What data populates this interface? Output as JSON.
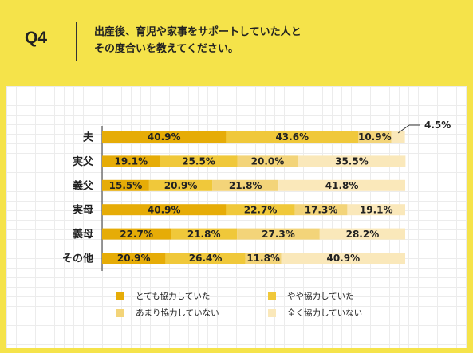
{
  "header": {
    "q_label": "Q4",
    "question_line1": "出産後、育児や家事をサポートしていた人と",
    "question_line2": "その度合いを教えてください。"
  },
  "colors": {
    "background": "#f5e34a",
    "series": [
      "#e6ac07",
      "#f0c83a",
      "#f3d479",
      "#fae8ba"
    ]
  },
  "chart_data": {
    "type": "bar",
    "orientation": "horizontal",
    "stacked": true,
    "categories": [
      "夫",
      "実父",
      "義父",
      "実母",
      "義母",
      "その他"
    ],
    "series": [
      {
        "name": "とても協力していた",
        "values": [
          40.9,
          19.1,
          15.5,
          40.9,
          22.7,
          20.9
        ]
      },
      {
        "name": "やや協力していた",
        "values": [
          43.6,
          25.5,
          20.9,
          22.7,
          21.8,
          26.4
        ]
      },
      {
        "name": "あまり協力していない",
        "values": [
          10.9,
          20.0,
          21.8,
          17.3,
          27.3,
          11.8
        ]
      },
      {
        "name": "全く協力していない",
        "values": [
          4.5,
          35.5,
          41.8,
          19.1,
          28.2,
          40.9
        ]
      }
    ],
    "labels": [
      [
        "40.9%",
        "43.6%",
        "10.9%",
        "4.5%"
      ],
      [
        "19.1%",
        "25.5%",
        "20.0%",
        "35.5%"
      ],
      [
        "15.5%",
        "20.9%",
        "21.8%",
        "41.8%"
      ],
      [
        "40.9%",
        "22.7%",
        "17.3%",
        "19.1%"
      ],
      [
        "22.7%",
        "21.8%",
        "27.3%",
        "28.2%"
      ],
      [
        "20.9%",
        "26.4%",
        "11.8%",
        "40.9%"
      ]
    ],
    "xlim": [
      0,
      100
    ],
    "legend_position": "bottom"
  }
}
